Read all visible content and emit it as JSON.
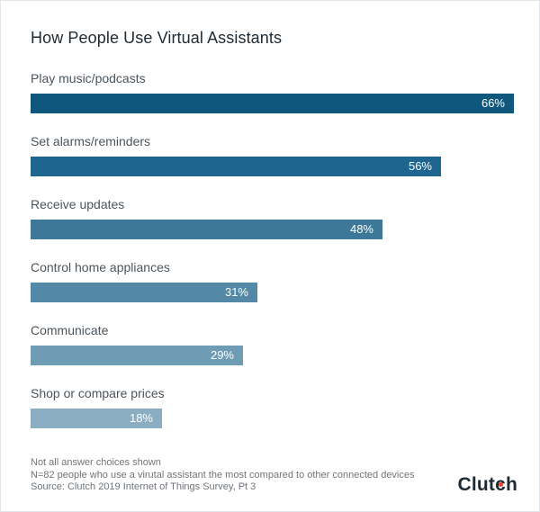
{
  "title": "How People Use Virtual Assistants",
  "chart_data": {
    "type": "bar",
    "orientation": "horizontal",
    "title": "How People Use Virtual Assistants",
    "categories": [
      "Play music/podcasts",
      "Set alarms/reminders",
      "Receive updates",
      "Control home appliances",
      "Communicate",
      "Shop or compare prices"
    ],
    "values": [
      66,
      56,
      48,
      31,
      29,
      18
    ],
    "value_labels": [
      "66%",
      "56%",
      "48%",
      "31%",
      "29%",
      "18%"
    ],
    "bar_colors": [
      "#10577e",
      "#1e668f",
      "#3d7899",
      "#5389a6",
      "#6f9cb5",
      "#8aadc2"
    ],
    "value_label_position": "inside-right",
    "value_label_color": "#ffffff",
    "axis": "none",
    "xlim": [
      0,
      66
    ],
    "grid": false,
    "legend": false
  },
  "footnotes": [
    "Not all answer choices shown",
    "N=82 people who use a virutal assistant the most compared to other connected devices",
    "Source: Clutch 2019 Internet of Things Survey, Pt 3"
  ],
  "logo": {
    "pre": "Clut",
    "c": "c",
    "post": "h",
    "text_color": "#1b2a33",
    "dot_color": "#e8432d"
  }
}
